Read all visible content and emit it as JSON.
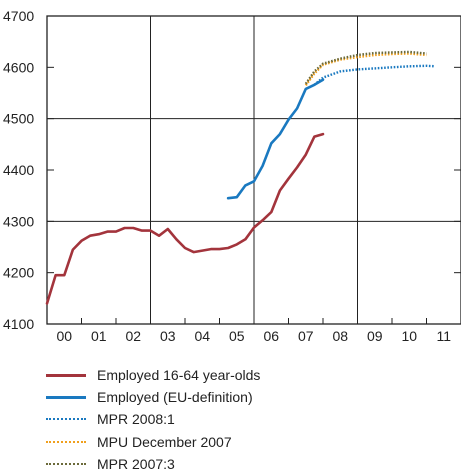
{
  "chart_data": {
    "type": "line",
    "ylim": [
      4100,
      4700
    ],
    "yticks": [
      4100,
      4200,
      4300,
      4400,
      4500,
      4600,
      4700
    ],
    "x_categories": [
      "00",
      "01",
      "02",
      "03",
      "04",
      "05",
      "06",
      "07",
      "08",
      "09",
      "10",
      "11"
    ],
    "xlim": [
      2000,
      2012
    ],
    "grid": "vertical at 2003, 2006, 2009; horizontal at 4300, 4500",
    "legend_position": "bottom",
    "series": [
      {
        "name": "Employed 16-64 year-olds",
        "color": "#a3343c",
        "style": "solid",
        "x": [
          2000.0,
          2000.25,
          2000.5,
          2000.75,
          2001.0,
          2001.25,
          2001.5,
          2001.75,
          2002.0,
          2002.25,
          2002.5,
          2002.75,
          2003.0,
          2003.25,
          2003.5,
          2003.75,
          2004.0,
          2004.25,
          2004.5,
          2004.75,
          2005.0,
          2005.25,
          2005.5,
          2005.75,
          2006.0,
          2006.25,
          2006.5,
          2006.75,
          2007.0,
          2007.25,
          2007.5,
          2007.75,
          2008.0
        ],
        "y": [
          4140,
          4195,
          4195,
          4245,
          4262,
          4272,
          4275,
          4280,
          4280,
          4287,
          4287,
          4282,
          4282,
          4272,
          4285,
          4265,
          4248,
          4240,
          4243,
          4246,
          4246,
          4248,
          4255,
          4265,
          4288,
          4302,
          4318,
          4360,
          4383,
          4405,
          4430,
          4465,
          4470
        ]
      },
      {
        "name": "Employed (EU-definition)",
        "color": "#1a79c0",
        "style": "solid",
        "x": [
          2005.25,
          2005.5,
          2005.75,
          2006.0,
          2006.25,
          2006.5,
          2006.75,
          2007.0,
          2007.25,
          2007.5,
          2007.75,
          2008.0
        ],
        "y": [
          4345,
          4347,
          4370,
          4378,
          4408,
          4452,
          4470,
          4498,
          4520,
          4558,
          4566,
          4576
        ]
      },
      {
        "name": "MPR 2008:1",
        "color": "#1a79c0",
        "style": "dotted",
        "x": [
          2007.75,
          2008.0,
          2008.5,
          2009.0,
          2009.5,
          2010.0,
          2010.5,
          2011.0,
          2011.25
        ],
        "y": [
          4566,
          4580,
          4592,
          4596,
          4598,
          4600,
          4602,
          4603,
          4602
        ]
      },
      {
        "name": "MPU December 2007",
        "color": "#f0a01e",
        "style": "dotted",
        "x": [
          2007.5,
          2007.75,
          2008.0,
          2008.5,
          2009.0,
          2009.5,
          2010.0,
          2010.5,
          2011.0
        ],
        "y": [
          4565,
          4588,
          4605,
          4615,
          4620,
          4624,
          4626,
          4627,
          4624
        ]
      },
      {
        "name": "MPR 2007:3",
        "color": "#6b6a3a",
        "style": "dotted",
        "x": [
          2007.5,
          2007.75,
          2008.0,
          2008.5,
          2009.0,
          2009.5,
          2010.0,
          2010.5,
          2011.0
        ],
        "y": [
          4568,
          4592,
          4607,
          4617,
          4624,
          4628,
          4629,
          4630,
          4627
        ]
      }
    ]
  }
}
